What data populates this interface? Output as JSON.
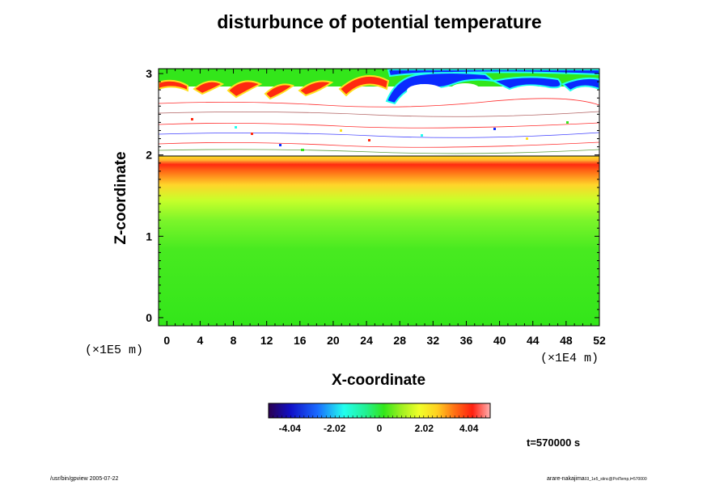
{
  "chart_data": {
    "type": "heatmap",
    "title": "disturbunce of potential temperature",
    "xlabel": "X-coordinate",
    "ylabel": "Z-coordinate",
    "x_unit": "(×1E4 m)",
    "z_unit": "(×1E5 m)",
    "x_ticks": [
      0,
      4,
      8,
      12,
      16,
      20,
      24,
      28,
      32,
      36,
      40,
      44,
      48,
      52
    ],
    "y_ticks": [
      0,
      1,
      2,
      3
    ],
    "xlim": [
      -1,
      52
    ],
    "ylim": [
      -0.1,
      3.06
    ],
    "colorbar": {
      "min": -5.0,
      "max": 5.0,
      "tick_values": [
        -4.04,
        -2.02,
        0,
        2.02,
        4.04
      ],
      "tick_labels": [
        "-4.04",
        "-2.02",
        "0",
        "2.02",
        "4.04"
      ]
    },
    "field_bands": [
      {
        "z_range": [
          -0.1,
          1.2
        ],
        "approx_value": 0.4
      },
      {
        "z_range": [
          1.2,
          1.7
        ],
        "approx_value": 1.2
      },
      {
        "z_range": [
          1.7,
          1.9
        ],
        "approx_value": 2.2
      },
      {
        "z_range": [
          1.9,
          2.0
        ],
        "approx_value": 4.0
      },
      {
        "z_range": [
          2.0,
          2.85
        ],
        "approx_value": "out of range (white)"
      },
      {
        "z_range": [
          2.85,
          3.06
        ],
        "approx_value": "mixed, about +4 (x<28) and -4 (x>28)"
      }
    ],
    "grid": false
  },
  "colors": {
    "background": "#ffffff",
    "green": "#33e61a",
    "yellow": "#f0ff2a",
    "red": "#ff2a10",
    "blue": "#0a2aff",
    "cyan": "#22ffee"
  },
  "annotations": {
    "time": "t=570000 s",
    "footer_left": "/usr/bin/gpview 2005-07-22",
    "footer_right_main": "arare-nakajima",
    "footer_right_small": "03_1e5_stinc@PotTemp,t=570000"
  }
}
